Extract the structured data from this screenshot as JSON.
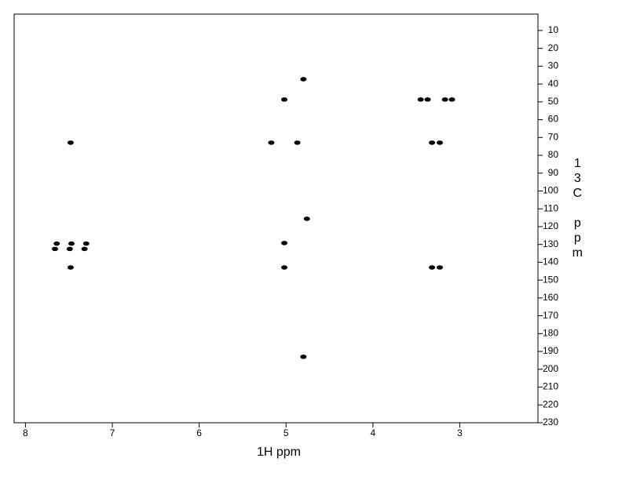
{
  "chart_data": {
    "type": "scatter",
    "xlabel": "1H ppm",
    "ylabel": "13C ppm",
    "xlim": [
      8.13,
      2.1
    ],
    "ylim": [
      0.8,
      230
    ],
    "xticks": [
      8,
      7,
      6,
      5,
      4,
      3
    ],
    "yticks": [
      10,
      20,
      30,
      40,
      50,
      60,
      70,
      80,
      90,
      100,
      110,
      120,
      130,
      140,
      150,
      160,
      170,
      180,
      190,
      200,
      210,
      220,
      230
    ],
    "series": [
      {
        "color": "#000000",
        "x": [
          7.48,
          7.64,
          7.66,
          7.47,
          7.49,
          7.3,
          7.32,
          7.48,
          5.02,
          5.17,
          4.87,
          4.76,
          5.02,
          5.02,
          4.8,
          4.8,
          3.45,
          3.37,
          3.17,
          3.09,
          3.32,
          3.23,
          3.32,
          3.23
        ],
        "values": [
          72.9,
          129.5,
          132.5,
          129.5,
          132.5,
          129.5,
          132.5,
          142.9,
          48.7,
          72.9,
          72.9,
          115.6,
          129.2,
          142.9,
          37.3,
          193,
          48.7,
          48.7,
          48.7,
          48.7,
          72.9,
          72.9,
          142.9,
          142.9
        ]
      }
    ]
  }
}
